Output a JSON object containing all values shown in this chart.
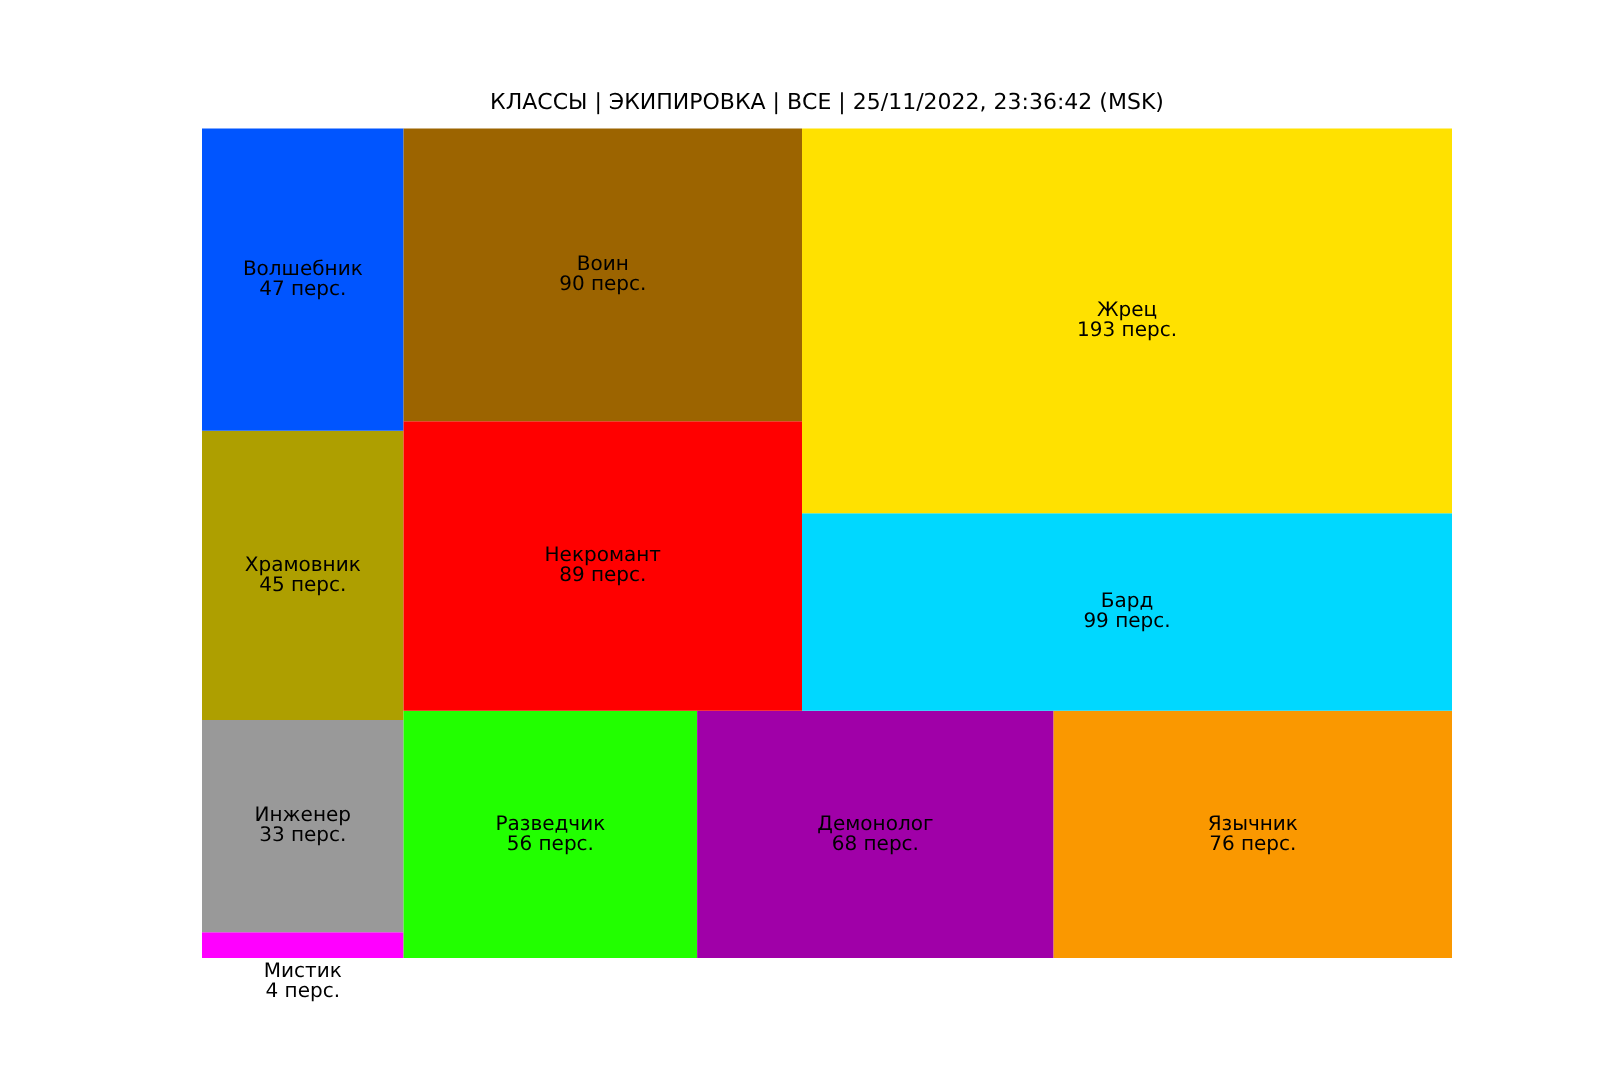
{
  "chart_data": {
    "type": "other",
    "title": "КЛАССЫ | ЭКИПИРОВКА | ВСЕ | 25/11/2022, 23:36:42 (MSK)",
    "categories": [
      "Мистик",
      "Инженер",
      "Храмовник",
      "Волшебник",
      "Разведчик",
      "Демонолог",
      "Язычник",
      "Некромант",
      "Воин",
      "Бард",
      "Жрец"
    ],
    "values": [
      4,
      33,
      45,
      47,
      56,
      68,
      76,
      89,
      90,
      99,
      193
    ],
    "value_labels": [
      "4 перс.",
      "33 перс.",
      "45 перс.",
      "47 перс.",
      "56 перс.",
      "68 перс.",
      "76 перс.",
      "89 перс.",
      "90 перс.",
      "99 перс.",
      "193 перс."
    ],
    "colors": [
      "#ff00ff",
      "#999999",
      "#ae9f00",
      "#0055ff",
      "#22ff00",
      "#a000a8",
      "#fa9800",
      "#ff0000",
      "#9c6400",
      "#00d8ff",
      "#ffe100"
    ]
  }
}
